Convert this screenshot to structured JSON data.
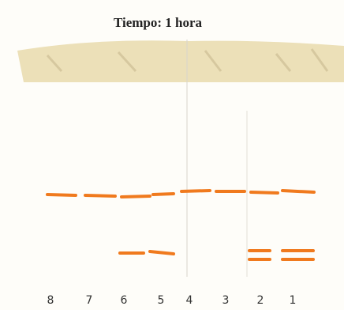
{
  "title": "Tiempo: 1 hora",
  "lanes": [
    "8",
    "7",
    "6",
    "5",
    "4",
    "3",
    "2",
    "1"
  ]
}
